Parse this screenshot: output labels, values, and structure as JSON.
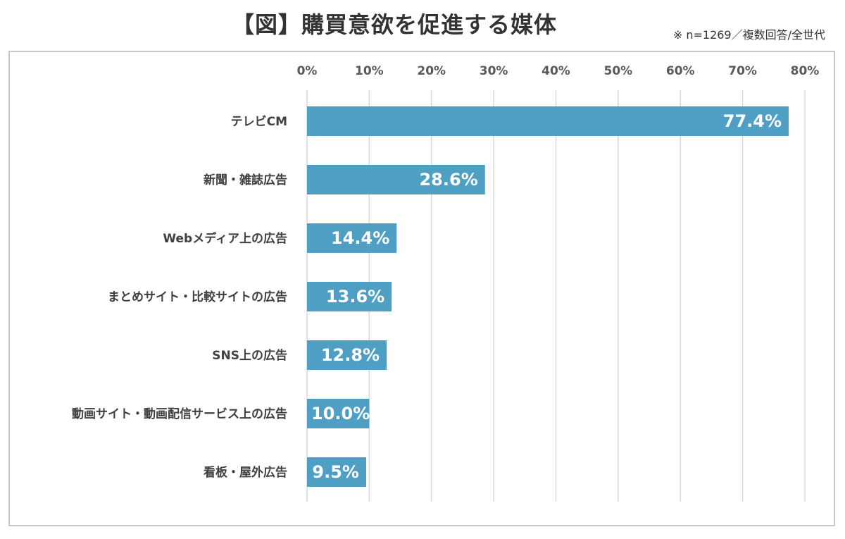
{
  "header": {
    "title": "【図】購買意欲を促進する媒体",
    "note": "※ n=1269／複数回答/全世代"
  },
  "chart_data": {
    "type": "bar",
    "orientation": "horizontal",
    "title": "【図】購買意欲を促進する媒体",
    "categories": [
      "テレビCM",
      "新聞・雑誌広告",
      "Webメディア上の広告",
      "まとめサイト・比較サイトの広告",
      "SNS上の広告",
      "動画サイト・動画配信サービス上の広告",
      "看板・屋外広告"
    ],
    "values": [
      77.4,
      28.6,
      14.4,
      13.6,
      12.8,
      10.0,
      9.5
    ],
    "data_labels": [
      "77.4%",
      "28.6%",
      "14.4%",
      "13.6%",
      "12.8%",
      "10.0%",
      "9.5%"
    ],
    "x_ticks": [
      "0%",
      "10%",
      "20%",
      "30%",
      "40%",
      "50%",
      "60%",
      "70%",
      "80%"
    ],
    "xlim": [
      0,
      80
    ],
    "x_axis_position": "top",
    "grid": true,
    "bar_color": "#4f9fc5",
    "gridline_color": "#d9d9d9"
  }
}
